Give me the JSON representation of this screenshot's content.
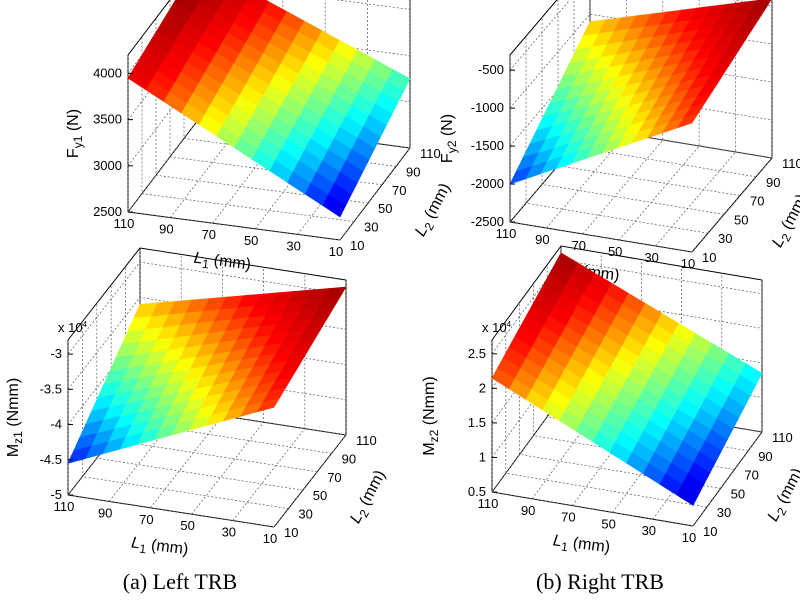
{
  "captions": {
    "left": "(a) Left TRB",
    "right": "(b) Right TRB"
  },
  "chart_data": [
    {
      "type": "surface",
      "title": "",
      "xlabel": "L1 (mm)",
      "xlabel_main": "L",
      "xlabel_sub": "1",
      "xlabel_rest": " (mm)",
      "ylabel": "L2 (mm)",
      "ylabel_main": "L",
      "ylabel_sub": "2",
      "ylabel_rest": " (mm)",
      "zlabel": "Fy1 (N)",
      "zlabel_main": "F",
      "zlabel_sub": "y1",
      "zlabel_rest": " (N)",
      "multiplier": "",
      "x_ticks": [
        "110",
        "90",
        "70",
        "50",
        "30",
        "10"
      ],
      "y_ticks": [
        "10",
        "30",
        "50",
        "70",
        "90",
        "110"
      ],
      "z_ticks": [
        "2500",
        "3000",
        "3500",
        "4000"
      ],
      "zlim": [
        2500,
        4200
      ],
      "corners": {
        "L1_110_L2_10": 3950,
        "L1_10_L2_10": 2750,
        "L1_110_L2_110": 4200,
        "L1_10_L2_110": 3250
      }
    },
    {
      "type": "surface",
      "title": "",
      "xlabel": "L1 (mm)",
      "xlabel_main": "L",
      "xlabel_sub": "1",
      "xlabel_rest": " (mm)",
      "ylabel": "L2 (mm)",
      "ylabel_main": "L",
      "ylabel_sub": "2",
      "ylabel_rest": " (mm)",
      "zlabel": "Fy2 (N)",
      "zlabel_main": "F",
      "zlabel_sub": "y2",
      "zlabel_rest": " (N)",
      "multiplier": "",
      "x_ticks": [
        "110",
        "90",
        "70",
        "50",
        "30",
        "10"
      ],
      "y_ticks": [
        "10",
        "30",
        "50",
        "70",
        "90",
        "110"
      ],
      "z_ticks": [
        "-2500",
        "-2000",
        "-1500",
        "-1000",
        "-500"
      ],
      "zlim": [
        -2500,
        -300
      ],
      "corners": {
        "L1_110_L2_10": -2000,
        "L1_10_L2_10": -800,
        "L1_110_L2_110": -1100,
        "L1_10_L2_110": -400
      }
    },
    {
      "type": "surface",
      "title": "",
      "xlabel": "L1 (mm)",
      "xlabel_main": "L",
      "xlabel_sub": "1",
      "xlabel_rest": " (mm)",
      "ylabel": "L2 (mm)",
      "ylabel_main": "L",
      "ylabel_sub": "2",
      "ylabel_rest": " (mm)",
      "zlabel": "Mz1 (Nmm)",
      "zlabel_main": "M",
      "zlabel_sub": "z1",
      "zlabel_rest": " (Nmm)",
      "multiplier": "x 10",
      "multiplier_exp": "4",
      "x_ticks": [
        "110",
        "90",
        "70",
        "50",
        "30",
        "10"
      ],
      "y_ticks": [
        "10",
        "30",
        "50",
        "70",
        "90",
        "110"
      ],
      "z_ticks": [
        "-5",
        "-4.5",
        "-4",
        "-3.5",
        "-3"
      ],
      "zlim": [
        -5,
        -2.8
      ],
      "corners": {
        "L1_110_L2_10": -4.55,
        "L1_10_L2_10": -3.3,
        "L1_110_L2_110": -3.6,
        "L1_10_L2_110": -2.9
      }
    },
    {
      "type": "surface",
      "title": "",
      "xlabel": "L1 (mm)",
      "xlabel_main": "L",
      "xlabel_sub": "1",
      "xlabel_rest": " (mm)",
      "ylabel": "L2 (mm)",
      "ylabel_main": "L",
      "ylabel_sub": "2",
      "ylabel_rest": " (mm)",
      "zlabel": "Mz2 (Nmm)",
      "zlabel_main": "M",
      "zlabel_sub": "z2",
      "zlabel_rest": " (Nmm)",
      "multiplier": "x 10",
      "multiplier_exp": "4",
      "x_ticks": [
        "110",
        "90",
        "70",
        "50",
        "30",
        "10"
      ],
      "y_ticks": [
        "10",
        "30",
        "50",
        "70",
        "90",
        "110"
      ],
      "z_ticks": [
        "0.5",
        "1",
        "1.5",
        "2",
        "2.5"
      ],
      "zlim": [
        0.5,
        2.7
      ],
      "corners": {
        "L1_110_L2_10": 2.15,
        "L1_10_L2_10": 0.8,
        "L1_110_L2_110": 2.6,
        "L1_10_L2_110": 1.35
      }
    }
  ],
  "colormap": [
    "#00008f",
    "#0000ff",
    "#00ffff",
    "#ffff00",
    "#ff0000",
    "#800000"
  ]
}
